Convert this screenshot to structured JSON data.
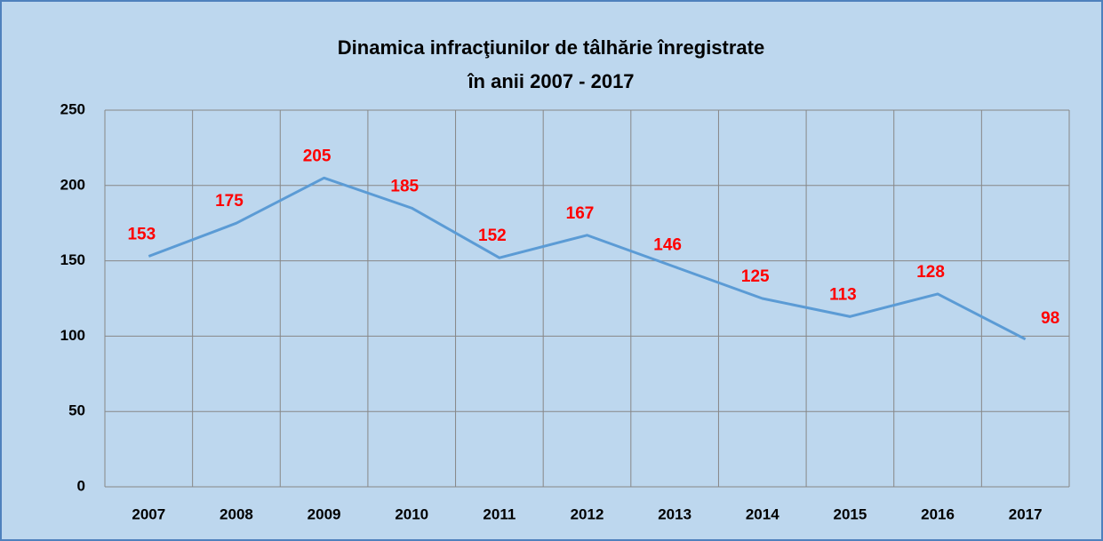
{
  "chart_data": {
    "type": "line",
    "title": [
      "Dinamica infracţiunilor de tâlhărie înregistrate",
      "în anii 2007 - 2017"
    ],
    "categories": [
      "2007",
      "2008",
      "2009",
      "2010",
      "2011",
      "2012",
      "2013",
      "2014",
      "2015",
      "2016",
      "2017"
    ],
    "values": [
      153,
      175,
      205,
      185,
      152,
      167,
      146,
      125,
      113,
      128,
      98
    ],
    "color": "#5b9bd5",
    "label_color": "#ff0000",
    "ylim": [
      0,
      250
    ],
    "yticks": [
      0,
      50,
      100,
      150,
      200,
      250
    ],
    "grid": true
  }
}
